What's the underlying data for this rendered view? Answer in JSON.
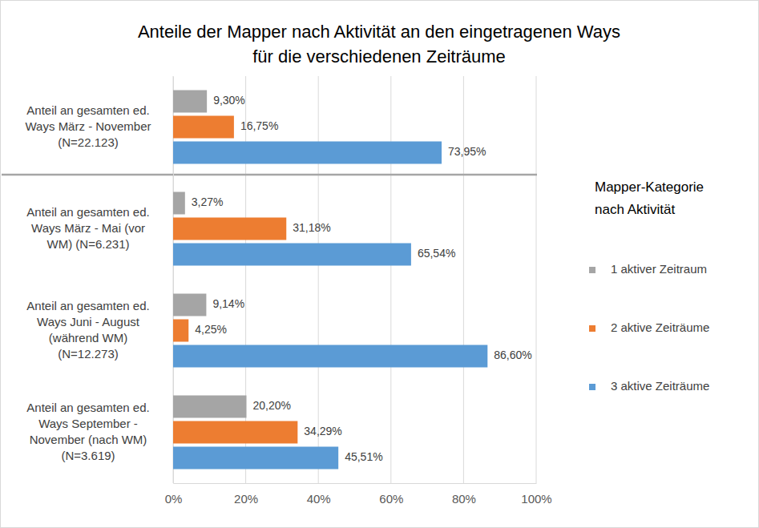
{
  "chart_data": {
    "type": "bar",
    "orientation": "horizontal",
    "title": "Anteile der Mapper nach Aktivität an den eingetragenen Ways\nfür die verschiedenen Zeiträume",
    "legend_title": "Mapper-Kategorie\nnach Aktivität",
    "categories": [
      "Anteil an gesamten ed.\nWays März - November\n(N=22.123)",
      "Anteil an gesamten ed.\nWays März - Mai (vor\nWM) (N=6.231)",
      "Anteil an gesamten ed.\nWays Juni - August\n(während WM)\n(N=12.273)",
      "Anteil an gesamten ed.\nWays September -\nNovember (nach WM)\n(N=3.619)"
    ],
    "series": [
      {
        "name": "1 aktiver Zeitraum",
        "color": "#a5a5a5",
        "values": [
          9.3,
          3.27,
          9.14,
          20.2
        ],
        "value_labels": [
          "9,30%",
          "3,27%",
          "9,14%",
          "20,20%"
        ]
      },
      {
        "name": "2 aktive Zeiträume",
        "color": "#ed7d31",
        "values": [
          16.75,
          31.18,
          4.25,
          34.29
        ],
        "value_labels": [
          "16,75%",
          "31,18%",
          "4,25%",
          "34,29%"
        ]
      },
      {
        "name": "3 aktive Zeiträume",
        "color": "#5b9bd5",
        "values": [
          73.95,
          65.54,
          86.6,
          45.51
        ],
        "value_labels": [
          "73,95%",
          "65,54%",
          "86,60%",
          "45,51%"
        ]
      }
    ],
    "xlim": [
      0,
      100
    ],
    "xticks": [
      {
        "value": 0,
        "label": "0%"
      },
      {
        "value": 20,
        "label": "20%"
      },
      {
        "value": 40,
        "label": "40%"
      },
      {
        "value": 60,
        "label": "60%"
      },
      {
        "value": 80,
        "label": "80%"
      },
      {
        "value": 100,
        "label": "100%"
      }
    ],
    "grid": true,
    "legend": "right",
    "data_labels": true
  }
}
